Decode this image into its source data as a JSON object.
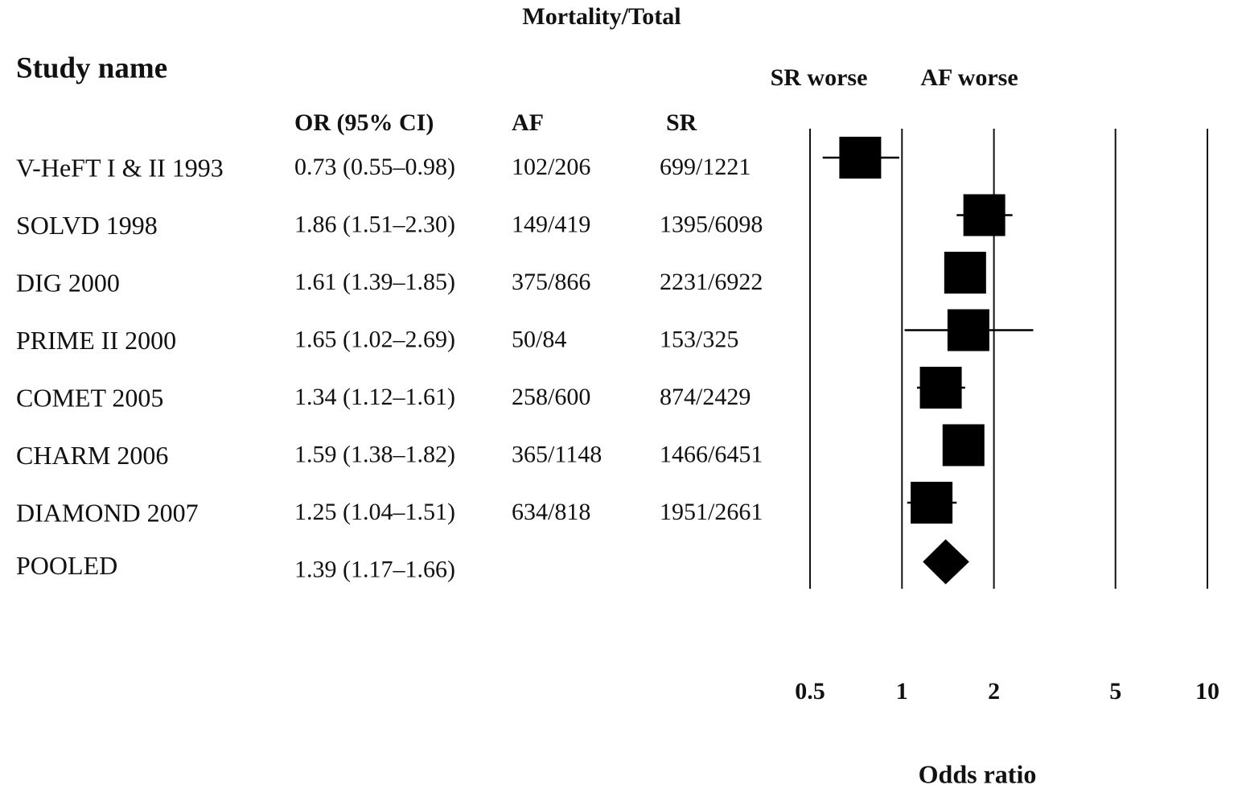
{
  "chart_data": {
    "type": "forest",
    "group_header": "Mortality/Total",
    "row_header": "Study name",
    "column_headers": [
      "OR (95% CI)",
      "AF",
      "SR"
    ],
    "annotations": [
      "SR worse",
      "AF worse"
    ],
    "xlabel": "Odds ratio",
    "categories": [
      "V-HeFT I & II 1993",
      "SOLVD 1998",
      "DIG 2000",
      "PRIME II 2000",
      "COMET 2005",
      "CHARM 2006",
      "DIAMOND 2007"
    ],
    "values": [
      0.73,
      1.86,
      1.61,
      1.65,
      1.34,
      1.59,
      1.25
    ],
    "lower": [
      0.55,
      1.51,
      1.39,
      1.02,
      1.12,
      1.38,
      1.04
    ],
    "upper": [
      0.98,
      2.3,
      1.85,
      2.69,
      1.61,
      1.82,
      1.51
    ],
    "value_labels": [
      "0.73 (0.55–0.98)",
      "1.86 (1.51–2.30)",
      "1.61 (1.39–1.85)",
      "1.65 (1.02–2.69)",
      "1.34 (1.12–1.61)",
      "1.59 (1.38–1.82)",
      "1.25 (1.04–1.51)"
    ],
    "af": [
      "102/206",
      "149/419",
      "375/866",
      "50/84",
      "258/600",
      "365/1148",
      "634/818"
    ],
    "sr": [
      "699/1221",
      "1395/6098",
      "2231/6922",
      "153/325",
      "874/2429",
      "1466/6451",
      "1951/2661"
    ],
    "pooled": {
      "name": "POOLED",
      "value": 1.39,
      "lower": 1.17,
      "upper": 1.66,
      "value_label": "1.39 (1.17–1.66)"
    },
    "xlim": [
      0.5,
      10
    ],
    "xticks": [
      0.5,
      1,
      2,
      5,
      10
    ],
    "log_x": true,
    "grid": true,
    "color": "#000000"
  }
}
